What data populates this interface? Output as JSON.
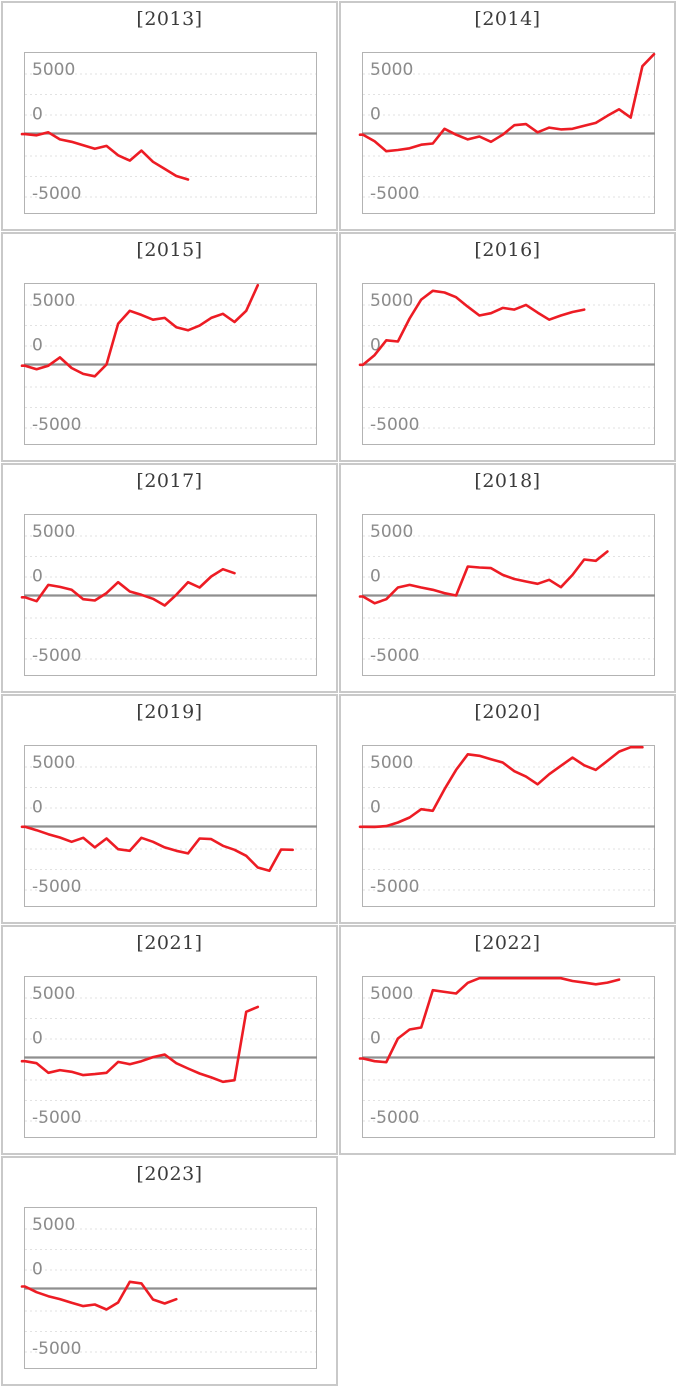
{
  "page": {
    "background_color": "#ffffff",
    "description": "Grid of eleven small-multiple line charts of yearly series, two per row, years 2013-2023"
  },
  "style": {
    "series_color": "#ed1c24",
    "zero_line_color": "#8f8f8f",
    "grid_line_color": "#e2e2e2",
    "plot_border_color": "#b3b3b3",
    "panel_border_color": "#c9c9c9",
    "title_color": "#3b3b3b",
    "tick_label_color": "#8b8b8b"
  },
  "chart_data": {
    "type": "line",
    "layout": "small-multiples, 2 columns x 6 rows, last cell empty",
    "legend": "none",
    "x_axis": {
      "label": "",
      "tick_labels": [],
      "slots": 26
    },
    "y_axis": {
      "label": "",
      "tick_labels": [
        "5000",
        "0",
        "-5000"
      ],
      "tick_values": [
        5000,
        0,
        -5000
      ],
      "grid": "dotted horizontal minor gridlines",
      "zero_line": "solid gray",
      "clip_range": [
        -6750,
        6820
      ]
    },
    "charts": [
      {
        "title": "[2013]",
        "year": 2013,
        "values": [
          -50,
          -150,
          100,
          -500,
          -700,
          -1000,
          -1300,
          -1050,
          -1850,
          -2300,
          -1450,
          -2400,
          -3000,
          -3600,
          -3900
        ]
      },
      {
        "title": "[2014]",
        "year": 2014,
        "values": [
          -100,
          -650,
          -1500,
          -1400,
          -1250,
          -950,
          -850,
          400,
          -100,
          -500,
          -250,
          -700,
          -100,
          700,
          800,
          100,
          500,
          350,
          400,
          650,
          900,
          1500,
          2050,
          1350,
          5700,
          7200
        ]
      },
      {
        "title": "[2015]",
        "year": 2015,
        "values": [
          -100,
          -400,
          -100,
          600,
          -300,
          -800,
          -1000,
          0,
          3450,
          4550,
          4200,
          3800,
          3950,
          3150,
          2900,
          3300,
          3950,
          4300,
          3600,
          4550,
          7000
        ]
      },
      {
        "title": "[2016]",
        "year": 2016,
        "values": [
          -25,
          800,
          2050,
          1950,
          3900,
          5500,
          6250,
          6100,
          5700,
          4900,
          4150,
          4350,
          4800,
          4650,
          5050,
          4400,
          3800,
          4150,
          4450,
          4650
        ]
      },
      {
        "title": "[2017]",
        "year": 2017,
        "values": [
          -150,
          -480,
          900,
          730,
          480,
          -310,
          -420,
          200,
          1130,
          340,
          60,
          -280,
          -850,
          60,
          1130,
          680,
          1610,
          2230,
          1890
        ]
      },
      {
        "title": "[2018]",
        "year": 2018,
        "values": [
          -85,
          -660,
          -310,
          680,
          900,
          680,
          480,
          200,
          0,
          2460,
          2370,
          2320,
          1750,
          1400,
          1185,
          990,
          1330,
          700,
          1750,
          3050,
          2940,
          3730
        ]
      },
      {
        "title": "[2019]",
        "year": 2019,
        "values": [
          -25,
          -310,
          -650,
          -930,
          -1295,
          -960,
          -1775,
          -1015,
          -1920,
          -2060,
          -960,
          -1295,
          -1775,
          -2060,
          -2280,
          -1015,
          -1070,
          -1635,
          -1975,
          -2480,
          -3475,
          -3755,
          -1945,
          -1975
        ]
      },
      {
        "title": "[2020]",
        "year": 2020,
        "values": [
          -25,
          -30,
          30,
          340,
          760,
          1465,
          1330,
          3160,
          4800,
          6120,
          5990,
          5700,
          5420,
          4690,
          4230,
          3580,
          4430,
          5140,
          5840,
          5190,
          4800,
          5560,
          6350,
          7000,
          7000
        ]
      },
      {
        "title": "[2021]",
        "year": 2021,
        "values": [
          -310,
          -480,
          -1295,
          -1070,
          -1210,
          -1495,
          -1410,
          -1295,
          -370,
          -565,
          -310,
          30,
          250,
          -480,
          -930,
          -1355,
          -1690,
          -2060,
          -1920,
          3870,
          4290
        ]
      },
      {
        "title": "[2022]",
        "year": 2022,
        "values": [
          -85,
          -310,
          -395,
          1610,
          2370,
          2540,
          5700,
          5560,
          5420,
          6330,
          6770,
          7000,
          7000,
          7000,
          7000,
          7000,
          7000,
          7000,
          6480,
          6350,
          6200,
          6350,
          6600
        ]
      },
      {
        "title": "[2023]",
        "year": 2023,
        "values": [
          170,
          -310,
          -650,
          -900,
          -1210,
          -1495,
          -1355,
          -1780,
          -1185,
          565,
          430,
          -930,
          -1270,
          -905
        ]
      }
    ]
  }
}
